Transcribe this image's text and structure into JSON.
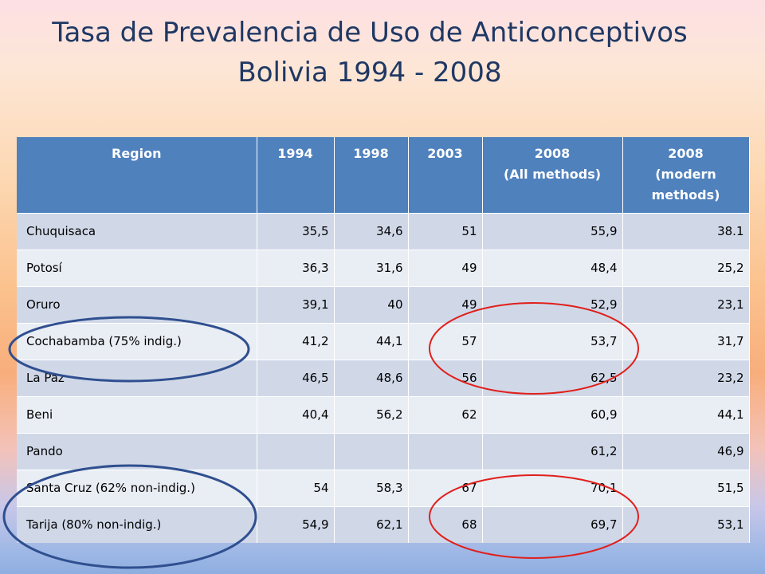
{
  "title": {
    "line1": "Tasa de Prevalencia de Uso de Anticonceptivos",
    "line2": "Bolivia 1994 - 2008"
  },
  "table": {
    "headers": {
      "region": "Region",
      "y1994": "1994",
      "y1998": "1998",
      "y2003": "2003",
      "all_year": "2008",
      "all_sub": "(All methods)",
      "mod_year": "2008",
      "mod_sub": "(modern methods)"
    },
    "rows": [
      {
        "region": "Chuquisaca",
        "v1994": "35,5",
        "v1998": "34,6",
        "v2003": "51",
        "v2008_all": "55,9",
        "v2008_modern": "38.1"
      },
      {
        "region": "Potosí",
        "v1994": "36,3",
        "v1998": "31,6",
        "v2003": "49",
        "v2008_all": "48,4",
        "v2008_modern": "25,2"
      },
      {
        "region": "Oruro",
        "v1994": "39,1",
        "v1998": "40",
        "v2003": "49",
        "v2008_all": "52,9",
        "v2008_modern": "23,1"
      },
      {
        "region": "Cochabamba (75% indig.)",
        "v1994": "41,2",
        "v1998": "44,1",
        "v2003": "57",
        "v2008_all": "53,7",
        "v2008_modern": "31,7"
      },
      {
        "region": "La Paz",
        "v1994": "46,5",
        "v1998": "48,6",
        "v2003": "56",
        "v2008_all": "62,5",
        "v2008_modern": "23,2"
      },
      {
        "region": "Beni",
        "v1994": "40,4",
        "v1998": "56,2",
        "v2003": "62",
        "v2008_all": "60,9",
        "v2008_modern": "44,1"
      },
      {
        "region": "Pando",
        "v1994": "",
        "v1998": "",
        "v2003": "",
        "v2008_all": "61,2",
        "v2008_modern": "46,9"
      },
      {
        "region": "Santa Cruz (62% non-indig.)",
        "v1994": "54",
        "v1998": "58,3",
        "v2003": "67",
        "v2008_all": "70,1",
        "v2008_modern": "51,5"
      },
      {
        "region": "Tarija (80% non-indig.)",
        "v1994": "54,9",
        "v1998": "62,1",
        "v2003": "68",
        "v2008_all": "69,7",
        "v2008_modern": "53,1"
      }
    ]
  },
  "annotations": {
    "blue_color": "#2f4f8f",
    "red_color": "#e0201c"
  }
}
